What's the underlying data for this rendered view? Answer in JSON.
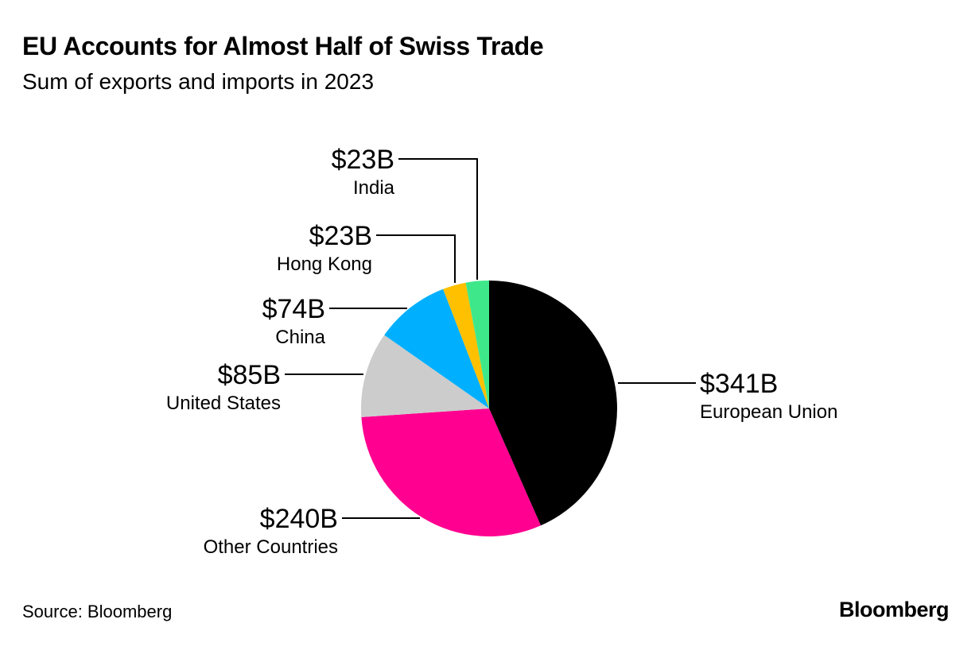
{
  "header": {
    "title": "EU Accounts for Almost Half of Swiss Trade",
    "subtitle": "Sum of exports and imports in 2023"
  },
  "footer": {
    "source": "Source: Bloomberg",
    "brand": "Bloomberg"
  },
  "chart_data": {
    "type": "pie",
    "title": "EU Accounts for Almost Half of Swiss Trade",
    "subtitle": "Sum of exports and imports in 2023",
    "unit": "USD billions",
    "start_angle_deg": 0,
    "direction": "clockwise",
    "slices": [
      {
        "key": "eu",
        "label": "European Union",
        "value": 341,
        "value_label": "$341B",
        "color": "#000000"
      },
      {
        "key": "other",
        "label": "Other Countries",
        "value": 240,
        "value_label": "$240B",
        "color": "#ff0090"
      },
      {
        "key": "us",
        "label": "United States",
        "value": 85,
        "value_label": "$85B",
        "color": "#cccccc"
      },
      {
        "key": "china",
        "label": "China",
        "value": 74,
        "value_label": "$74B",
        "color": "#00b0ff"
      },
      {
        "key": "hk",
        "label": "Hong Kong",
        "value": 23,
        "value_label": "$23B",
        "color": "#ffc000"
      },
      {
        "key": "india",
        "label": "India",
        "value": 23,
        "value_label": "$23B",
        "color": "#3ee88a"
      }
    ]
  }
}
